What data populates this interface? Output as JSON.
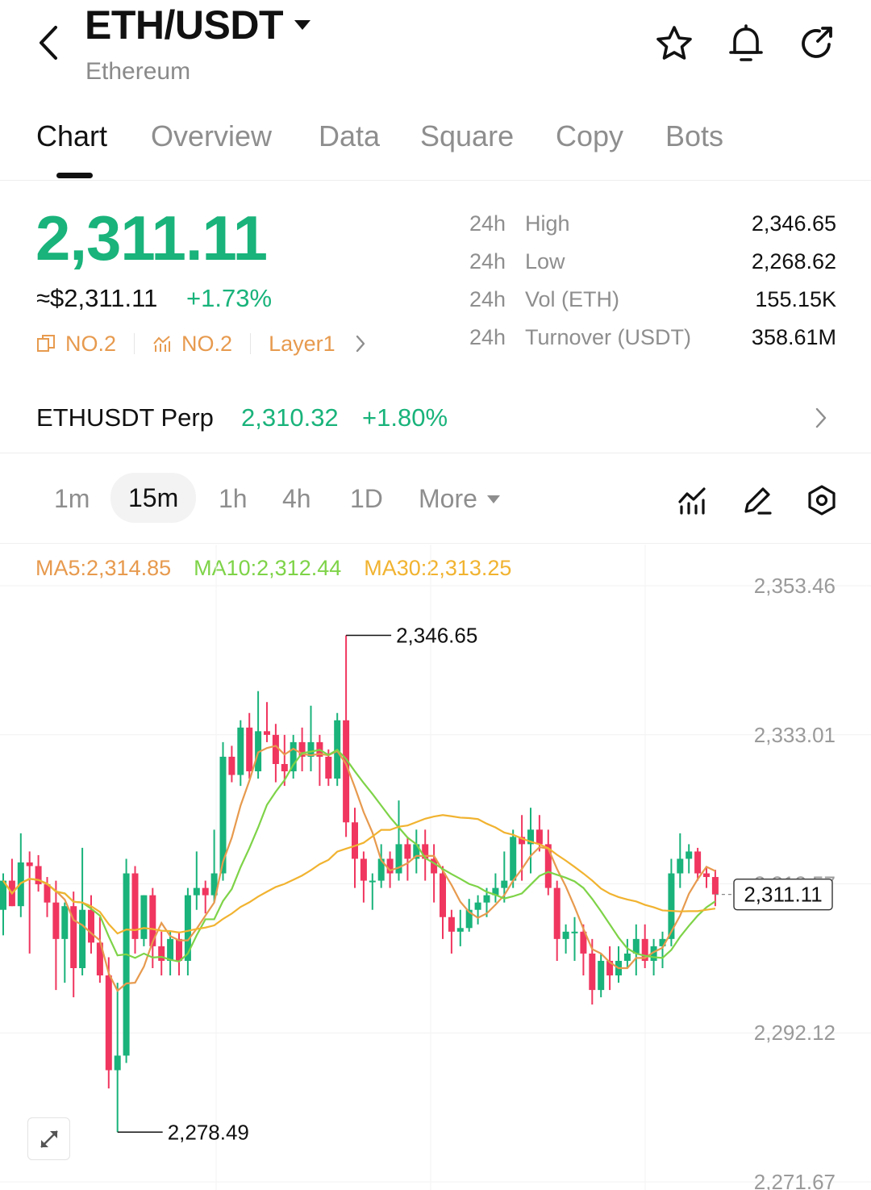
{
  "header": {
    "title": "ETH/USDT",
    "subtitle": "Ethereum",
    "icons": [
      "back-icon",
      "star-icon",
      "bell-icon",
      "share-icon"
    ]
  },
  "tabs": [
    {
      "label": "Chart",
      "active": true
    },
    {
      "label": "Overview"
    },
    {
      "label": "Data"
    },
    {
      "label": "Square"
    },
    {
      "label": "Copy"
    },
    {
      "label": "Bots"
    }
  ],
  "ticker": {
    "price": "2,311.11",
    "approx": "≈$2,311.11",
    "change": "+1.73%",
    "rank1": "NO.2",
    "rank2": "NO.2",
    "category": "Layer1",
    "up_color": "#19b37b",
    "down_color": "#f0365f",
    "accent": "#e79a4e"
  },
  "stats": [
    {
      "k1": "24h",
      "k2": "High",
      "v": "2,346.65"
    },
    {
      "k1": "24h",
      "k2": "Low",
      "v": "2,268.62"
    },
    {
      "k1": "24h",
      "k2": "Vol (ETH)",
      "v": "155.15K"
    },
    {
      "k1": "24h",
      "k2": "Turnover (USDT)",
      "v": "358.61M"
    }
  ],
  "perp": {
    "name": "ETHUSDT Perp",
    "price": "2,310.32",
    "change": "+1.80%"
  },
  "intervals": {
    "items": [
      "1m",
      "15m",
      "1h",
      "4h",
      "1D"
    ],
    "active": "15m",
    "more": "More"
  },
  "chart_data": {
    "type": "candlestick",
    "ma": [
      {
        "label": "MA5:2,314.85",
        "color": "#e79a4e"
      },
      {
        "label": "MA10:2,312.44",
        "color": "#7ed348"
      },
      {
        "label": "MA30:2,313.25",
        "color": "#f1b330"
      }
    ],
    "y_ticks": [
      "2,353.46",
      "2,333.01",
      "2,312.57",
      "2,292.12",
      "2,271.67"
    ],
    "y_tick_values": [
      2353.46,
      2333.01,
      2312.57,
      2292.12,
      2271.67
    ],
    "ylim": [
      2271.67,
      2353.46
    ],
    "high_label": "2,346.65",
    "low_label": "2,278.49",
    "last_price": "2,311.11",
    "candles": [
      {
        "o": 2309.0,
        "h": 2314.0,
        "l": 2305.5,
        "c": 2313.0
      },
      {
        "o": 2313.0,
        "h": 2316.0,
        "l": 2309.5,
        "c": 2309.5
      },
      {
        "o": 2309.5,
        "h": 2319.5,
        "l": 2308.0,
        "c": 2315.5
      },
      {
        "o": 2315.5,
        "h": 2317.0,
        "l": 2303.0,
        "c": 2315.0
      },
      {
        "o": 2315.0,
        "h": 2316.5,
        "l": 2311.5,
        "c": 2312.5
      },
      {
        "o": 2312.5,
        "h": 2313.5,
        "l": 2308.0,
        "c": 2310.0
      },
      {
        "o": 2310.0,
        "h": 2313.0,
        "l": 2298.0,
        "c": 2305.0
      },
      {
        "o": 2305.0,
        "h": 2310.0,
        "l": 2299.0,
        "c": 2309.5
      },
      {
        "o": 2309.5,
        "h": 2311.5,
        "l": 2297.0,
        "c": 2301.0
      },
      {
        "o": 2301.0,
        "h": 2317.5,
        "l": 2300.0,
        "c": 2309.0
      },
      {
        "o": 2309.0,
        "h": 2311.0,
        "l": 2303.0,
        "c": 2304.5
      },
      {
        "o": 2304.5,
        "h": 2308.0,
        "l": 2299.0,
        "c": 2300.0
      },
      {
        "o": 2300.0,
        "h": 2302.5,
        "l": 2284.5,
        "c": 2287.0
      },
      {
        "o": 2287.0,
        "h": 2299.0,
        "l": 2278.5,
        "c": 2289.0
      },
      {
        "o": 2289.0,
        "h": 2316.0,
        "l": 2288.0,
        "c": 2314.0
      },
      {
        "o": 2314.0,
        "h": 2315.0,
        "l": 2303.0,
        "c": 2305.0
      },
      {
        "o": 2305.0,
        "h": 2311.0,
        "l": 2304.0,
        "c": 2311.0
      },
      {
        "o": 2311.0,
        "h": 2312.0,
        "l": 2301.0,
        "c": 2304.0
      },
      {
        "o": 2304.0,
        "h": 2306.0,
        "l": 2300.0,
        "c": 2302.0
      },
      {
        "o": 2302.0,
        "h": 2306.0,
        "l": 2300.0,
        "c": 2305.0
      },
      {
        "o": 2305.0,
        "h": 2306.0,
        "l": 2300.0,
        "c": 2302.0
      },
      {
        "o": 2302.0,
        "h": 2312.0,
        "l": 2300.0,
        "c": 2311.0
      },
      {
        "o": 2311.0,
        "h": 2317.0,
        "l": 2309.0,
        "c": 2312.0
      },
      {
        "o": 2312.0,
        "h": 2313.0,
        "l": 2308.5,
        "c": 2311.0
      },
      {
        "o": 2311.0,
        "h": 2320.0,
        "l": 2310.0,
        "c": 2314.0
      },
      {
        "o": 2314.0,
        "h": 2332.0,
        "l": 2313.0,
        "c": 2330.0
      },
      {
        "o": 2330.0,
        "h": 2331.5,
        "l": 2326.5,
        "c": 2327.5
      },
      {
        "o": 2327.5,
        "h": 2335.0,
        "l": 2326.0,
        "c": 2334.0
      },
      {
        "o": 2334.0,
        "h": 2336.0,
        "l": 2327.0,
        "c": 2328.0
      },
      {
        "o": 2328.0,
        "h": 2339.0,
        "l": 2327.0,
        "c": 2333.5
      },
      {
        "o": 2333.5,
        "h": 2337.5,
        "l": 2332.0,
        "c": 2333.0
      },
      {
        "o": 2333.0,
        "h": 2334.5,
        "l": 2326.5,
        "c": 2329.0
      },
      {
        "o": 2329.0,
        "h": 2333.0,
        "l": 2326.0,
        "c": 2328.0
      },
      {
        "o": 2328.0,
        "h": 2333.0,
        "l": 2327.0,
        "c": 2332.0
      },
      {
        "o": 2332.0,
        "h": 2334.0,
        "l": 2328.0,
        "c": 2330.0
      },
      {
        "o": 2330.0,
        "h": 2337.0,
        "l": 2328.0,
        "c": 2332.0
      },
      {
        "o": 2332.0,
        "h": 2333.0,
        "l": 2326.0,
        "c": 2330.0
      },
      {
        "o": 2330.0,
        "h": 2331.0,
        "l": 2326.0,
        "c": 2327.0
      },
      {
        "o": 2327.0,
        "h": 2336.0,
        "l": 2326.0,
        "c": 2335.0
      },
      {
        "o": 2335.0,
        "h": 2346.65,
        "l": 2319.0,
        "c": 2321.0
      },
      {
        "o": 2321.0,
        "h": 2323.0,
        "l": 2312.0,
        "c": 2316.0
      },
      {
        "o": 2316.0,
        "h": 2317.0,
        "l": 2310.0,
        "c": 2313.0
      },
      {
        "o": 2313.0,
        "h": 2314.0,
        "l": 2309.0,
        "c": 2313.0
      },
      {
        "o": 2313.0,
        "h": 2318.0,
        "l": 2312.0,
        "c": 2316.0
      },
      {
        "o": 2316.0,
        "h": 2317.0,
        "l": 2312.0,
        "c": 2314.0
      },
      {
        "o": 2314.0,
        "h": 2324.0,
        "l": 2313.0,
        "c": 2318.0
      },
      {
        "o": 2318.0,
        "h": 2319.0,
        "l": 2313.0,
        "c": 2316.0
      },
      {
        "o": 2316.0,
        "h": 2320.0,
        "l": 2314.0,
        "c": 2318.0
      },
      {
        "o": 2318.0,
        "h": 2320.0,
        "l": 2313.0,
        "c": 2316.0
      },
      {
        "o": 2316.0,
        "h": 2318.0,
        "l": 2310.0,
        "c": 2314.0
      },
      {
        "o": 2314.0,
        "h": 2315.0,
        "l": 2305.0,
        "c": 2308.0
      },
      {
        "o": 2308.0,
        "h": 2309.0,
        "l": 2303.0,
        "c": 2306.0
      },
      {
        "o": 2306.0,
        "h": 2309.0,
        "l": 2304.0,
        "c": 2306.5
      },
      {
        "o": 2306.5,
        "h": 2310.5,
        "l": 2306.0,
        "c": 2309.0
      },
      {
        "o": 2309.0,
        "h": 2311.0,
        "l": 2307.0,
        "c": 2310.0
      },
      {
        "o": 2310.0,
        "h": 2312.0,
        "l": 2308.0,
        "c": 2311.0
      },
      {
        "o": 2311.0,
        "h": 2314.0,
        "l": 2310.0,
        "c": 2312.0
      },
      {
        "o": 2312.0,
        "h": 2317.0,
        "l": 2310.0,
        "c": 2313.0
      },
      {
        "o": 2313.0,
        "h": 2320.0,
        "l": 2312.0,
        "c": 2319.0
      },
      {
        "o": 2319.0,
        "h": 2322.0,
        "l": 2313.0,
        "c": 2318.0
      },
      {
        "o": 2318.0,
        "h": 2323.0,
        "l": 2314.0,
        "c": 2320.0
      },
      {
        "o": 2320.0,
        "h": 2322.0,
        "l": 2317.0,
        "c": 2318.0
      },
      {
        "o": 2318.0,
        "h": 2320.0,
        "l": 2311.0,
        "c": 2312.0
      },
      {
        "o": 2312.0,
        "h": 2313.0,
        "l": 2302.0,
        "c": 2305.0
      },
      {
        "o": 2305.0,
        "h": 2307.0,
        "l": 2303.0,
        "c": 2306.0
      },
      {
        "o": 2306.0,
        "h": 2308.0,
        "l": 2302.0,
        "c": 2306.0
      },
      {
        "o": 2306.0,
        "h": 2307.0,
        "l": 2300.0,
        "c": 2303.0
      },
      {
        "o": 2303.0,
        "h": 2305.0,
        "l": 2296.0,
        "c": 2298.0
      },
      {
        "o": 2298.0,
        "h": 2303.0,
        "l": 2297.0,
        "c": 2302.0
      },
      {
        "o": 2302.0,
        "h": 2304.0,
        "l": 2298.0,
        "c": 2300.0
      },
      {
        "o": 2300.0,
        "h": 2304.0,
        "l": 2299.0,
        "c": 2302.0
      },
      {
        "o": 2302.0,
        "h": 2305.0,
        "l": 2301.0,
        "c": 2303.0
      },
      {
        "o": 2303.0,
        "h": 2307.0,
        "l": 2300.0,
        "c": 2305.0
      },
      {
        "o": 2305.0,
        "h": 2307.0,
        "l": 2301.0,
        "c": 2302.0
      },
      {
        "o": 2302.0,
        "h": 2305.0,
        "l": 2300.0,
        "c": 2304.0
      },
      {
        "o": 2304.0,
        "h": 2306.0,
        "l": 2301.0,
        "c": 2305.0
      },
      {
        "o": 2305.0,
        "h": 2316.0,
        "l": 2304.0,
        "c": 2314.0
      },
      {
        "o": 2314.0,
        "h": 2319.5,
        "l": 2312.0,
        "c": 2316.0
      },
      {
        "o": 2316.0,
        "h": 2318.0,
        "l": 2314.0,
        "c": 2317.0
      },
      {
        "o": 2317.0,
        "h": 2317.5,
        "l": 2313.0,
        "c": 2314.0
      },
      {
        "o": 2314.0,
        "h": 2315.0,
        "l": 2312.0,
        "c": 2313.5
      },
      {
        "o": 2313.5,
        "h": 2314.5,
        "l": 2309.5,
        "c": 2311.11
      }
    ]
  }
}
